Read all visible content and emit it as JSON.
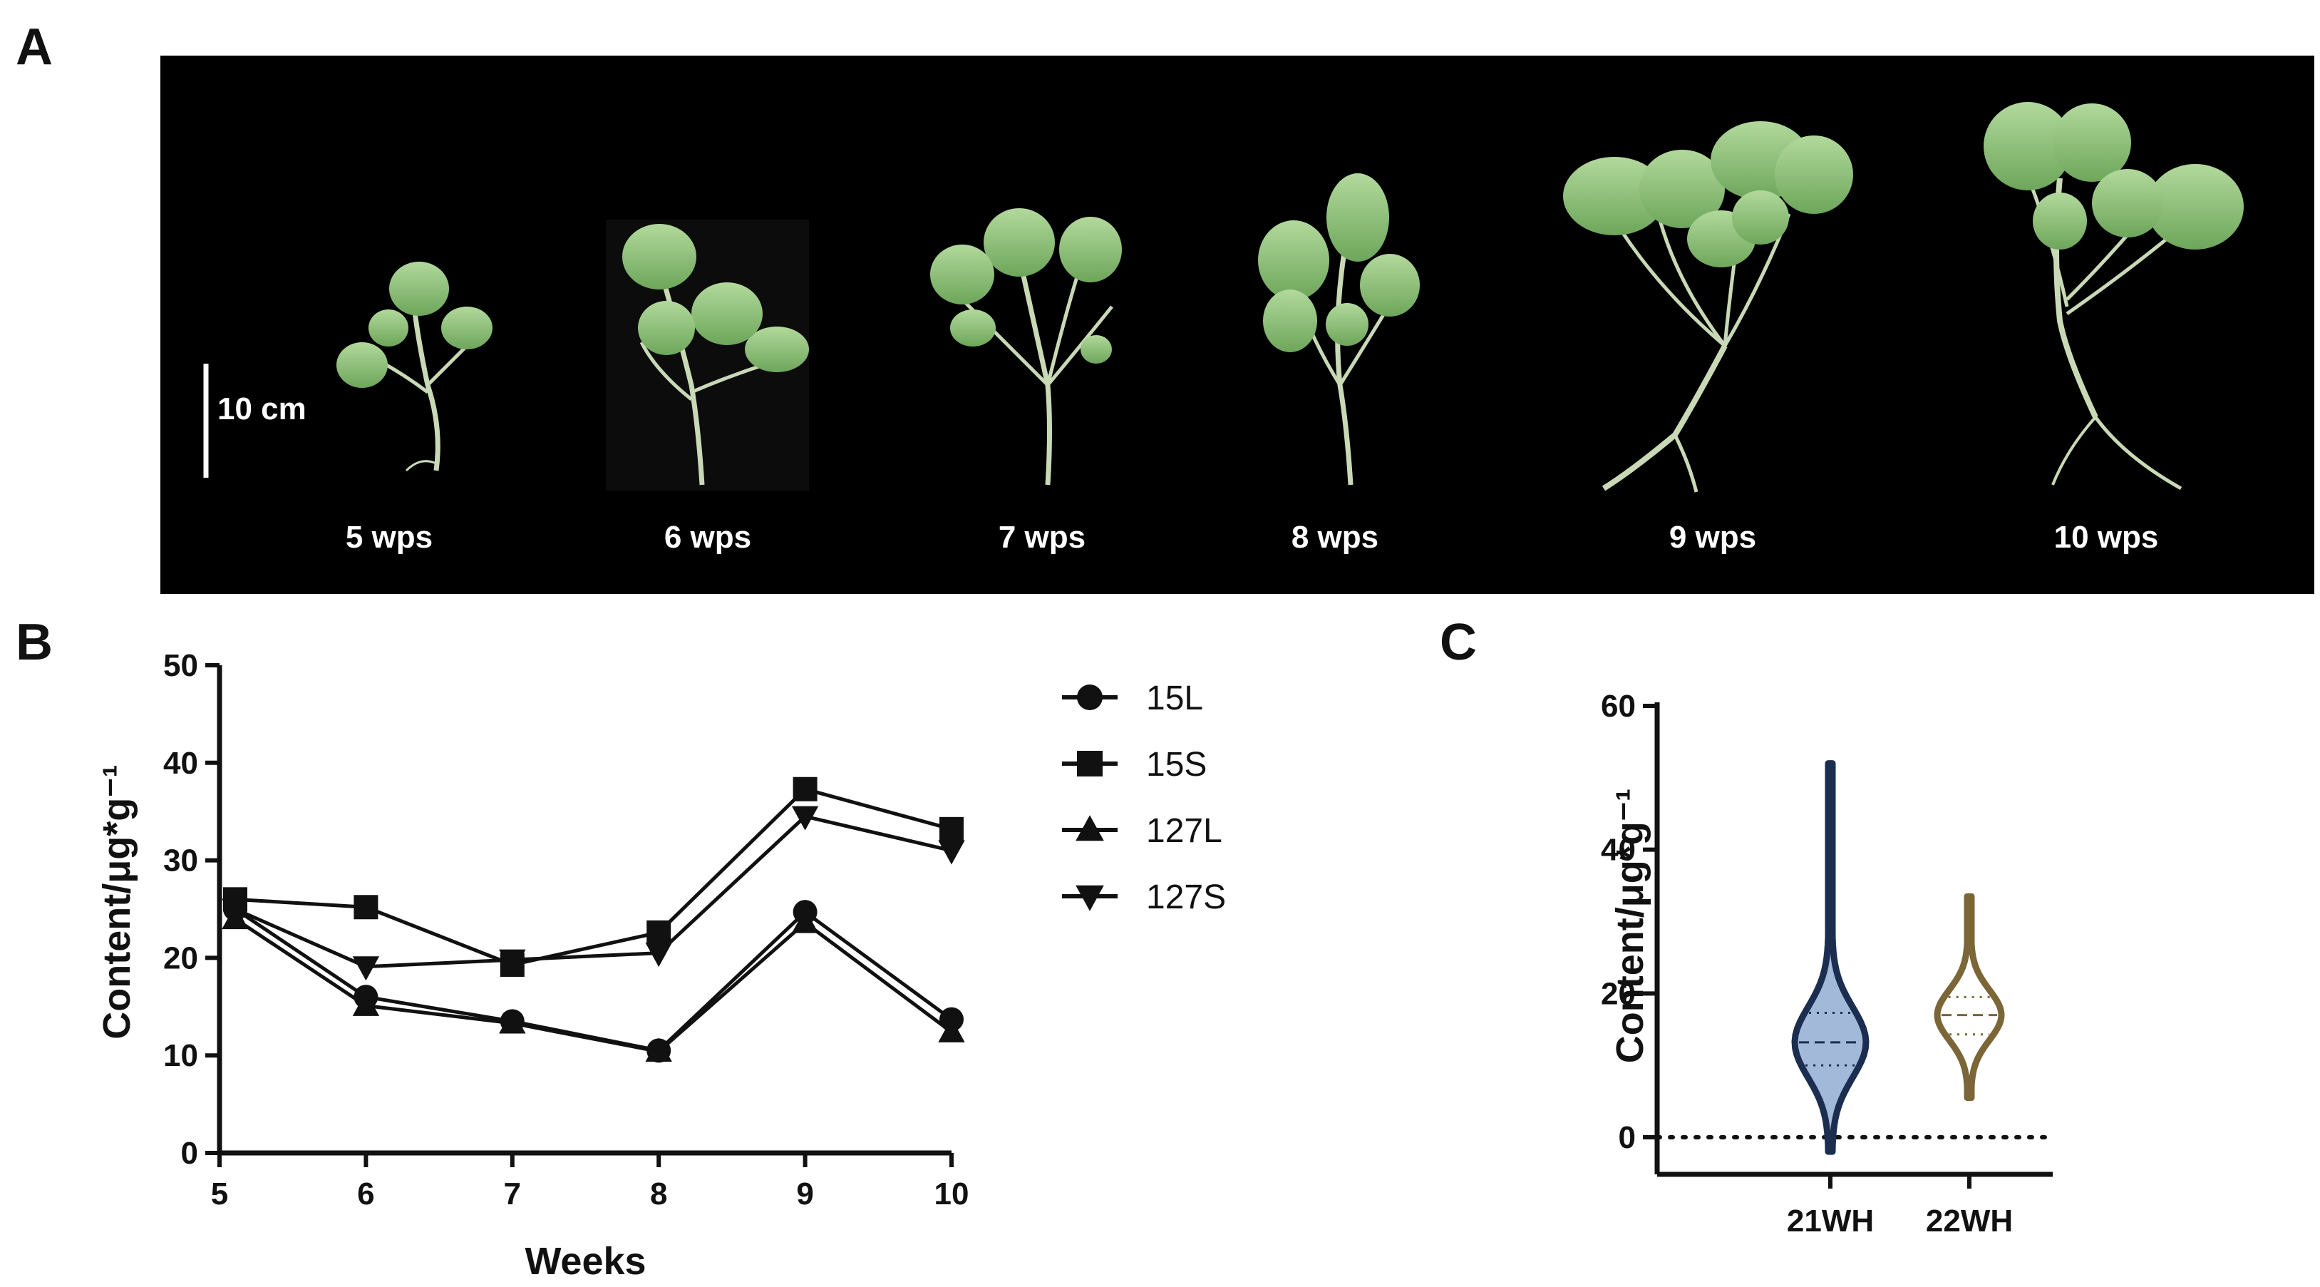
{
  "panels": {
    "a": {
      "letter": "A"
    },
    "b": {
      "letter": "B"
    },
    "c": {
      "letter": "C"
    }
  },
  "photo": {
    "scale_bar": "10 cm",
    "labels": [
      "5 wps",
      "6 wps",
      "7 wps",
      "8 wps",
      "9 wps",
      "10 wps"
    ],
    "background": "#000000",
    "leaf_color": "#8fc47a"
  },
  "chart_data": [
    {
      "type": "line",
      "panel": "B",
      "xlabel": "Weeks",
      "ylabel": "Content/μg*g⁻¹",
      "x": [
        5,
        6,
        7,
        8,
        9,
        10
      ],
      "xlim": [
        5,
        10
      ],
      "ylim": [
        0,
        50
      ],
      "xticks": [
        "5",
        "6",
        "7",
        "8",
        "9",
        "10"
      ],
      "yticks": [
        "0",
        "10",
        "20",
        "30",
        "40",
        "50"
      ],
      "legend_position": "right",
      "series": [
        {
          "name": "15L",
          "marker": "circle",
          "values": [
            25.0,
            16.0,
            13.5,
            10.5,
            24.7,
            13.7
          ]
        },
        {
          "name": "15S",
          "marker": "square",
          "values": [
            26.0,
            25.2,
            19.3,
            22.6,
            37.3,
            33.2
          ]
        },
        {
          "name": "127L",
          "marker": "triangle-up",
          "values": [
            24.0,
            15.1,
            13.3,
            10.4,
            23.6,
            12.4
          ]
        },
        {
          "name": "127S",
          "marker": "triangle-down",
          "values": [
            25.0,
            19.1,
            19.8,
            20.5,
            34.5,
            31.0
          ]
        }
      ]
    },
    {
      "type": "violin",
      "panel": "C",
      "ylabel": "Content/μg*g⁻¹",
      "ylim": [
        0,
        60
      ],
      "yticks": [
        "0",
        "20",
        "40",
        "60"
      ],
      "categories": [
        "21WH",
        "22WH"
      ],
      "reference_line": 0,
      "series": [
        {
          "category": "21WH",
          "color": "#1b2e50",
          "fill": "#a3b9d9",
          "min": -2,
          "max": 52,
          "q1": 10.0,
          "median": 13.2,
          "q3": 17.3
        },
        {
          "category": "22WH",
          "color": "#7a6636",
          "fill": "#ffffff",
          "min": 5.5,
          "max": 33.5,
          "q1": 14.3,
          "median": 17.0,
          "q3": 19.5
        }
      ]
    }
  ]
}
